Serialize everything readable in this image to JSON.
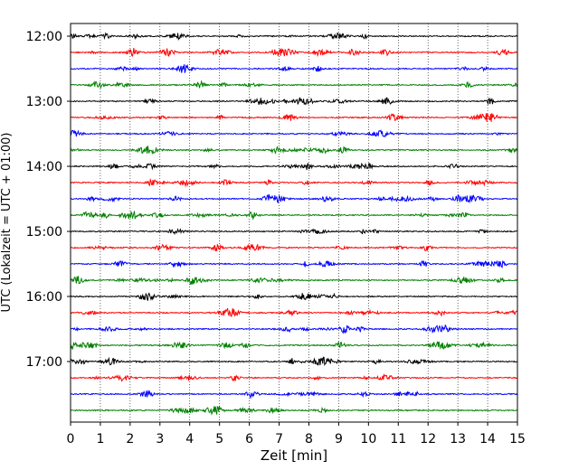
{
  "chart_data": {
    "type": "line",
    "subtype": "helicorder",
    "title": "",
    "xlabel": "Zeit  [min]",
    "ylabel": "UTC (Lokalzeit = UTC + 01:00)",
    "xlim": [
      0,
      15
    ],
    "x_ticks": [
      "0",
      "1",
      "2",
      "3",
      "4",
      "5",
      "6",
      "7",
      "8",
      "9",
      "10",
      "11",
      "12",
      "13",
      "14",
      "15"
    ],
    "y_tick_labels": [
      "12:00",
      "13:00",
      "14:00",
      "15:00",
      "16:00",
      "17:00"
    ],
    "traces_per_hour": 4,
    "trace_count": 24,
    "trace_colors": [
      "#000000",
      "#ff0000",
      "#0000ff",
      "#008000"
    ],
    "grid": "vertical dotted lines at each minute",
    "legend": "none"
  }
}
